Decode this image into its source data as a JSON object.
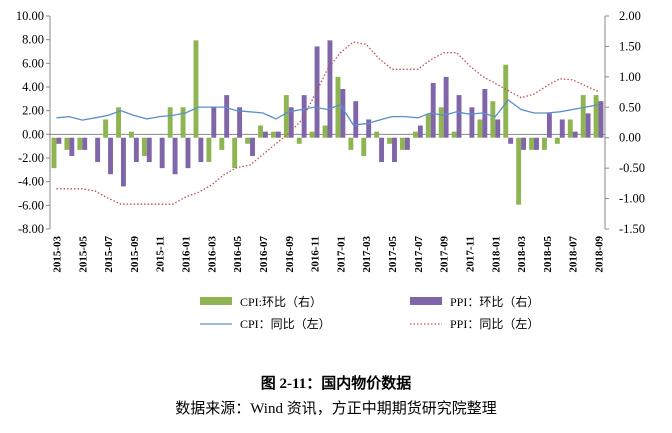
{
  "chart_data": {
    "type": "bar",
    "caption": "图 2-11：国内物价数据",
    "source": "数据来源：Wind 资讯，方正中期期货研究院整理",
    "categories": [
      "2015-03",
      null,
      "2015-05",
      null,
      "2015-07",
      null,
      "2015-09",
      null,
      "2015-11",
      null,
      "2016-01",
      null,
      "2016-03",
      null,
      "2016-05",
      null,
      "2016-07",
      null,
      "2016-09",
      null,
      "2016-11",
      null,
      "2017-01",
      null,
      "2017-03",
      null,
      "2017-05",
      null,
      "2017-07",
      null,
      "2017-09",
      null,
      "2017-11",
      null,
      "2018-01",
      null,
      "2018-03",
      null,
      "2018-05",
      null,
      "2018-07",
      null,
      "2018-09"
    ],
    "ylim": [
      -8,
      10
    ],
    "yticks": [
      {
        "value": -8,
        "label": "-8.00"
      },
      {
        "value": -6,
        "label": "-6.00"
      },
      {
        "value": -4,
        "label": "-4.00"
      },
      {
        "value": -2,
        "label": "-2.00"
      },
      {
        "value": 0,
        "label": "0.00"
      },
      {
        "value": 2,
        "label": "2.00"
      },
      {
        "value": 4,
        "label": "4.00"
      },
      {
        "value": 6,
        "label": "6.00"
      },
      {
        "value": 8,
        "label": "8.00"
      },
      {
        "value": 10,
        "label": "10.00"
      }
    ],
    "y2lim": [
      -1.5,
      2
    ],
    "y2ticks": [
      {
        "value": -1.5,
        "label": "-1.50"
      },
      {
        "value": -1,
        "label": "-1.00"
      },
      {
        "value": -0.5,
        "label": "-0.50"
      },
      {
        "value": 0,
        "label": "0.00"
      },
      {
        "value": 0.5,
        "label": "0.50"
      },
      {
        "value": 1,
        "label": "1.00"
      },
      {
        "value": 1.5,
        "label": "1.50"
      },
      {
        "value": 2,
        "label": "2.00"
      }
    ],
    "series": [
      {
        "name": "CPI:环比（右）",
        "type": "bar",
        "axis": "y2",
        "color": "#8fb552",
        "values": [
          -0.5,
          -0.2,
          -0.2,
          0.0,
          0.3,
          0.5,
          0.1,
          -0.3,
          0.0,
          0.5,
          0.5,
          1.6,
          -0.4,
          -0.2,
          -0.5,
          -0.1,
          0.2,
          0.1,
          0.7,
          -0.1,
          0.1,
          0.2,
          1.0,
          -0.2,
          -0.3,
          0.1,
          -0.1,
          -0.2,
          0.1,
          0.4,
          0.5,
          0.1,
          0.0,
          0.3,
          0.6,
          1.2,
          -1.1,
          -0.2,
          -0.2,
          -0.1,
          0.3,
          0.7,
          0.7
        ]
      },
      {
        "name": "PPI：环比（右）",
        "type": "bar",
        "axis": "y2",
        "color": "#7f66a8",
        "values": [
          -0.1,
          -0.3,
          -0.2,
          -0.4,
          -0.6,
          -0.8,
          -0.4,
          -0.4,
          -0.5,
          -0.6,
          -0.5,
          -0.4,
          0.5,
          0.7,
          0.5,
          -0.3,
          0.1,
          0.1,
          0.5,
          0.7,
          1.5,
          1.6,
          0.8,
          0.6,
          0.3,
          -0.4,
          -0.4,
          -0.2,
          0.2,
          0.9,
          1.0,
          0.7,
          0.5,
          0.8,
          0.3,
          -0.1,
          -0.2,
          -0.2,
          0.4,
          0.3,
          0.1,
          0.4,
          0.6
        ]
      },
      {
        "name": "CPI：同比（左）",
        "type": "line",
        "color": "#5b8fc9",
        "line_style": "solid",
        "values": [
          1.4,
          1.5,
          1.2,
          1.4,
          1.6,
          2.0,
          1.6,
          1.3,
          1.5,
          1.6,
          1.8,
          2.3,
          2.3,
          2.3,
          2.0,
          1.9,
          1.8,
          1.3,
          1.9,
          2.1,
          2.3,
          2.1,
          2.5,
          0.8,
          0.9,
          1.2,
          1.5,
          1.5,
          1.4,
          1.8,
          1.6,
          1.9,
          1.7,
          1.8,
          1.5,
          2.9,
          2.1,
          1.8,
          1.8,
          1.9,
          2.1,
          2.3,
          2.5
        ]
      },
      {
        "name": "PPI：同比（左）",
        "type": "line",
        "color": "#c0504d",
        "line_style": "dotted",
        "values": [
          -4.6,
          -4.6,
          -4.6,
          -4.8,
          -5.4,
          -5.9,
          -5.9,
          -5.9,
          -5.9,
          -5.9,
          -5.3,
          -4.9,
          -4.3,
          -3.4,
          -2.8,
          -2.6,
          -1.7,
          -0.8,
          0.1,
          1.2,
          3.3,
          5.5,
          6.9,
          7.8,
          7.6,
          6.4,
          5.5,
          5.5,
          5.5,
          6.3,
          6.9,
          6.9,
          5.8,
          4.9,
          4.3,
          3.7,
          3.1,
          3.4,
          4.1,
          4.7,
          4.6,
          4.1,
          3.6
        ]
      }
    ]
  }
}
